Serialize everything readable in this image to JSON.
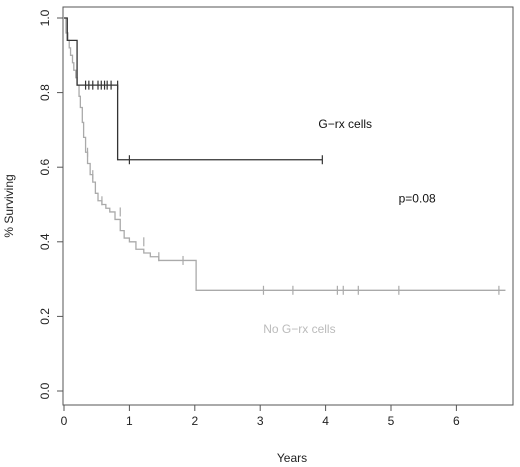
{
  "chart_data": {
    "type": "line",
    "title": "",
    "xlabel": "Years",
    "ylabel": "% Surviving",
    "xlim": [
      0,
      6.9
    ],
    "ylim": [
      0,
      1.0
    ],
    "x_ticks": [
      0,
      1,
      2,
      3,
      4,
      5,
      6
    ],
    "x_tick_labels": [
      "0",
      "1",
      "2",
      "3",
      "4",
      "5",
      "6"
    ],
    "y_ticks": [
      0.0,
      0.2,
      0.4,
      0.6,
      0.8,
      1.0
    ],
    "y_tick_labels": [
      "0.0",
      "0.2",
      "0.4",
      "0.6",
      "0.8",
      "1.0"
    ],
    "grid": false,
    "step": true,
    "series": [
      {
        "name": "G−rx cells",
        "color": "#333333",
        "x": [
          0,
          0.05,
          0.2,
          0.82,
          3.95
        ],
        "y": [
          1.0,
          0.94,
          0.82,
          0.62,
          0.62
        ],
        "censor_x": [
          0.33,
          0.38,
          0.44,
          0.52,
          0.57,
          0.62,
          0.66,
          0.72,
          0.82,
          1.0,
          3.95
        ],
        "censor_y": [
          0.82,
          0.82,
          0.82,
          0.82,
          0.82,
          0.82,
          0.82,
          0.82,
          0.82,
          0.62,
          0.62
        ]
      },
      {
        "name": "No G−rx cells",
        "color": "#aaaaaa",
        "x": [
          0,
          0.03,
          0.06,
          0.08,
          0.1,
          0.13,
          0.15,
          0.18,
          0.2,
          0.23,
          0.25,
          0.28,
          0.3,
          0.33,
          0.36,
          0.4,
          0.44,
          0.48,
          0.52,
          0.58,
          0.64,
          0.7,
          0.78,
          0.86,
          0.92,
          1.0,
          1.1,
          1.22,
          1.32,
          1.45,
          1.6,
          2.02,
          6.75
        ],
        "y": [
          1.0,
          0.96,
          0.94,
          0.92,
          0.9,
          0.88,
          0.86,
          0.84,
          0.82,
          0.79,
          0.76,
          0.72,
          0.68,
          0.64,
          0.61,
          0.58,
          0.56,
          0.53,
          0.51,
          0.5,
          0.49,
          0.48,
          0.46,
          0.43,
          0.41,
          0.4,
          0.38,
          0.37,
          0.36,
          0.35,
          0.35,
          0.27,
          0.27
        ],
        "censor_x": [
          0.36,
          0.44,
          0.58,
          0.86,
          1.22,
          1.45,
          1.82,
          3.05,
          3.5,
          4.18,
          4.27,
          4.5,
          5.12,
          6.65
        ],
        "censor_y": [
          0.64,
          0.58,
          0.51,
          0.48,
          0.4,
          0.36,
          0.35,
          0.27,
          0.27,
          0.27,
          0.27,
          0.27,
          0.27,
          0.27
        ]
      }
    ],
    "annotations": [
      {
        "text": "G−rx cells",
        "x": 4.3,
        "y": 0.705,
        "color": "#111111"
      },
      {
        "text": "p=0.08",
        "x": 5.4,
        "y": 0.505,
        "color": "#111111"
      },
      {
        "text": "No G−rx cells",
        "x": 3.6,
        "y": 0.155,
        "color": "#bbbbbb"
      }
    ]
  }
}
